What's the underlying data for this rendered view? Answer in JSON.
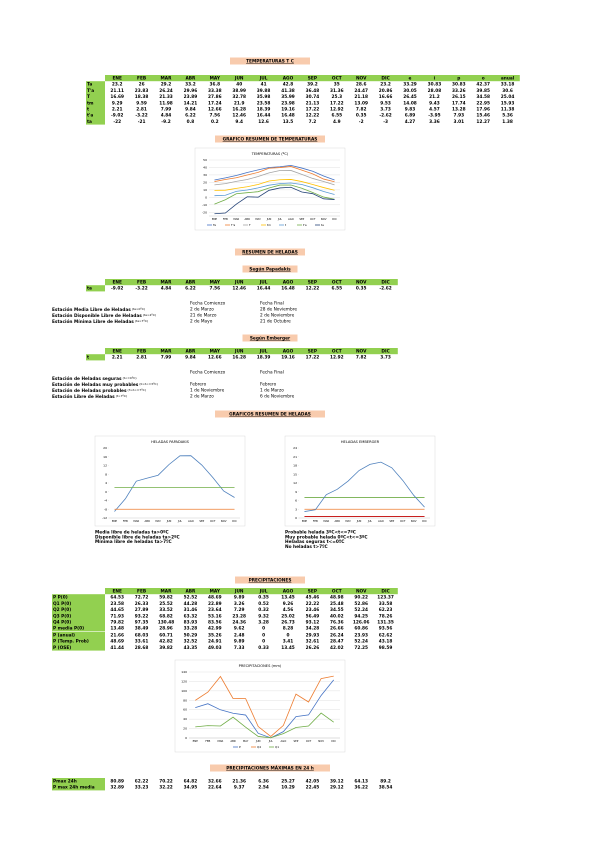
{
  "temperatures": {
    "heading": "TEMPERATURAS T C",
    "columns": [
      "ENE",
      "FEB",
      "MAR",
      "ABR",
      "MAY",
      "JUN",
      "JUL",
      "AGO",
      "SEP",
      "OCT",
      "NOV",
      "DIC",
      "e",
      "i",
      "p",
      "o",
      "anual"
    ],
    "rows": [
      {
        "label": "Ta",
        "values": [
          23.2,
          26,
          29.2,
          33.2,
          36.8,
          40,
          41,
          42.8,
          39.2,
          35,
          28.6,
          23.2,
          33.29,
          30.83,
          30.83,
          42.37,
          33.18
        ]
      },
      {
        "label": "T'a",
        "values": [
          21.11,
          23.83,
          26.24,
          29.96,
          33.38,
          38.99,
          39.88,
          41.38,
          36.48,
          31.36,
          24.47,
          20.86,
          30.05,
          28.08,
          33.26,
          39.85,
          30.6
        ]
      },
      {
        "label": "T",
        "values": [
          16.69,
          18.38,
          21.33,
          23.89,
          27.86,
          32.78,
          35.98,
          35.99,
          30.74,
          25.3,
          21.18,
          16.66,
          26.45,
          21.2,
          26.15,
          34.58,
          25.04
        ]
      },
      {
        "label": "tm",
        "values": [
          9.29,
          9.59,
          11.98,
          14.21,
          17.24,
          21.9,
          23.58,
          23.98,
          21.13,
          17.22,
          13.09,
          9.53,
          14.08,
          9.43,
          17.74,
          22.95,
          15.93
        ]
      },
      {
        "label": "t",
        "values": [
          2.21,
          2.81,
          7.99,
          9.84,
          12.66,
          16.28,
          18.39,
          19.16,
          17.22,
          12.92,
          7.82,
          3.73,
          9.83,
          4.57,
          13.28,
          17.96,
          11.38
        ]
      },
      {
        "label": "t'a",
        "values": [
          -9.02,
          -3.22,
          4.84,
          6.22,
          7.56,
          12.46,
          16.44,
          16.48,
          12.22,
          6.55,
          0.35,
          -2.62,
          6.89,
          -3.95,
          7.93,
          15.46,
          5.36
        ]
      },
      {
        "label": "ta",
        "values": [
          -22,
          -21,
          -9.2,
          0.8,
          0.2,
          9.4,
          12.6,
          13.5,
          7.2,
          4.9,
          -2,
          -3,
          4.27,
          3.36,
          3.01,
          12.27,
          1.38
        ]
      }
    ]
  },
  "temperature_chart": {
    "heading": "GRAFICO RESUMEN DE TEMPERATURAS",
    "type": "line",
    "title": "TEMPERATURAS (ºC)",
    "categories": [
      "ENE",
      "FEB",
      "MAR",
      "ABR",
      "MAY",
      "JUN",
      "JUL",
      "AGO",
      "SEP",
      "OCT",
      "NOV",
      "DIC"
    ],
    "ylim": [
      -25,
      50
    ],
    "yticks": [
      -20,
      -10,
      0,
      10,
      20,
      30,
      40,
      50
    ],
    "grid": true,
    "series": [
      {
        "name": "Ta",
        "color": "#4472c4",
        "values": [
          23.2,
          26,
          29.2,
          33.2,
          36.8,
          40,
          41,
          42.8,
          39.2,
          35,
          28.6,
          23.2
        ]
      },
      {
        "name": "T'a",
        "color": "#ed7d31",
        "values": [
          21.11,
          23.83,
          26.24,
          29.96,
          33.38,
          38.99,
          39.88,
          41.38,
          36.48,
          31.36,
          24.47,
          20.86
        ]
      },
      {
        "name": "T",
        "color": "#a5a5a5",
        "values": [
          16.69,
          18.38,
          21.33,
          23.89,
          27.86,
          32.78,
          35.98,
          35.99,
          30.74,
          25.3,
          21.18,
          16.66
        ]
      },
      {
        "name": "tm",
        "color": "#ffc000",
        "values": [
          9.29,
          9.59,
          11.98,
          14.21,
          17.24,
          21.9,
          23.58,
          23.98,
          21.13,
          17.22,
          13.09,
          9.53
        ]
      },
      {
        "name": "t",
        "color": "#5b9bd5",
        "values": [
          2.21,
          2.81,
          7.99,
          9.84,
          12.66,
          16.28,
          18.39,
          19.16,
          17.22,
          12.92,
          7.82,
          3.73
        ]
      },
      {
        "name": "t'a",
        "color": "#70ad47",
        "values": [
          -9.02,
          -3.22,
          4.84,
          6.22,
          7.56,
          12.46,
          16.44,
          16.48,
          12.22,
          6.55,
          0.35,
          -2.62
        ]
      },
      {
        "name": "ta",
        "color": "#264478",
        "values": [
          -22,
          -21,
          -9.2,
          0.8,
          0.2,
          9.4,
          12.6,
          13.5,
          7.2,
          4.9,
          -2,
          -3
        ]
      }
    ]
  },
  "frost": {
    "heading": "RESUMEN DE HELADAS",
    "papadakis": {
      "title": "Según Papadakis",
      "columns": [
        "ENE",
        "FEB",
        "MAR",
        "ABR",
        "MAY",
        "JUN",
        "JUL",
        "AGO",
        "SEP",
        "OCT",
        "NOV",
        "DIC"
      ],
      "rows": [
        {
          "label": "ta",
          "values": [
            -9.02,
            -3.22,
            4.84,
            6.22,
            7.56,
            12.46,
            16.44,
            16.48,
            12.22,
            6.55,
            0.35,
            -2.62
          ]
        }
      ],
      "date_headers": [
        "Fecha Comienzo",
        "Fecha Final"
      ],
      "periods": [
        {
          "label": "Estación Media Libre de Heladas",
          "note": "(ta>0ºC)",
          "start": "2 de Marzo",
          "end": "28 de Noviembre"
        },
        {
          "label": "Estación Disponible Libre de Heladas",
          "note": "(ta>2ºC)",
          "start": "21 de Marzo",
          "end": "2 de Noviembre"
        },
        {
          "label": "Estación Mínima Libre de Heladas",
          "note": "(ta>7ºC)",
          "start": "2 de Mayo",
          "end": "21 de Octubre"
        }
      ]
    },
    "emberger": {
      "title": "Según Emberger",
      "columns": [
        "ENE",
        "FEB",
        "MAR",
        "ABR",
        "MAY",
        "JUN",
        "JUL",
        "AGO",
        "SEP",
        "OCT",
        "NOV",
        "DIC"
      ],
      "rows": [
        {
          "label": "t",
          "values": [
            2.21,
            2.81,
            7.99,
            9.84,
            12.66,
            16.28,
            18.39,
            19.16,
            17.22,
            12.92,
            7.82,
            3.73
          ]
        }
      ],
      "date_headers": [
        "Fecha Comienzo",
        "Fecha Final"
      ],
      "periods": [
        {
          "label": "Estación de Heladas seguras",
          "note": "(t<=0ºC)",
          "start": "",
          "end": ""
        },
        {
          "label": "Estación de Heladas muy probables",
          "note": "(0<t<=3ºC)",
          "start": "Febrero",
          "end": "Febrero"
        },
        {
          "label": "Estación de Heladas probables",
          "note": "(3<t<=7ºC)",
          "start": "1 de Noviembre",
          "end": "1 de Marzo"
        },
        {
          "label": "Estación Libre de Heladas",
          "note": "(t>7ºC)",
          "start": "2 de Marzo",
          "end": "6 de Noviembre"
        }
      ]
    }
  },
  "frost_charts": {
    "heading": "GRAFICOS RESUMEN DE HELADAS",
    "charts": [
      {
        "type": "line",
        "title": "HELADAS PAPADAKIS",
        "categories": [
          "ENE",
          "FEB",
          "MAR",
          "ABR",
          "MAY",
          "JUN",
          "JUL",
          "AGO",
          "SEP",
          "OCT",
          "NOV",
          "DIC"
        ],
        "ylim": [
          -12,
          20
        ],
        "yticks": [
          -12,
          -8,
          -4,
          0,
          4,
          8,
          12,
          16,
          20
        ],
        "grid": false,
        "series": [
          {
            "name": "Media libre de heladas ta>0ºC",
            "color": "#4f81bd",
            "values": [
              -9.02,
              -3.22,
              4.84,
              6.22,
              7.56,
              12.46,
              16.44,
              16.48,
              12.22,
              6.55,
              0.35,
              -2.62
            ]
          },
          {
            "name": "Disponible libre de heladas ta>2ºC",
            "color": "#70ad47",
            "values": [
              2,
              2,
              2,
              2,
              2,
              2,
              2,
              2,
              2,
              2,
              2,
              2
            ]
          },
          {
            "name": "Mínima libre de heladas ta>7ºC",
            "color": "#ed7d31",
            "values": [
              -8,
              -8,
              -8,
              -8,
              -8,
              -8,
              -8,
              -8,
              -8,
              -8,
              -8,
              -8
            ]
          }
        ]
      },
      {
        "type": "line",
        "title": "HELADAS EMBERGER",
        "categories": [
          "ENE",
          "FEB",
          "MAR",
          "ABR",
          "MAY",
          "JUN",
          "JUL",
          "AGO",
          "SEP",
          "OCT",
          "NOV",
          "DIC"
        ],
        "ylim": [
          0,
          24
        ],
        "yticks": [
          0,
          3,
          6,
          9,
          12,
          15,
          18,
          21,
          24
        ],
        "grid": false,
        "series": [
          {
            "name": "Probable helada 3ºC<t<=7ºC",
            "color": "#ed7d31",
            "values": [
              3,
              3,
              3,
              3,
              3,
              3,
              3,
              3,
              3,
              3,
              3,
              3
            ]
          },
          {
            "name": "Muy probable helada 0ºC<t<=3ºC",
            "color": "#c00000",
            "values": [
              0.5,
              0.5,
              0.5,
              0.5,
              0.5,
              0.5,
              0.5,
              0.5,
              0.5,
              0.5,
              0.5,
              0.5
            ]
          },
          {
            "name": "Heladas seguras t<=0ºC",
            "color": "#70ad47",
            "values": [
              7,
              7,
              7,
              7,
              7,
              7,
              7,
              7,
              7,
              7,
              7,
              7
            ]
          },
          {
            "name": "No heladas t>7ºC",
            "color": "#4f81bd",
            "values": [
              2.21,
              2.81,
              7.99,
              9.84,
              12.66,
              16.28,
              18.39,
              19.16,
              17.22,
              12.92,
              7.82,
              3.73
            ]
          }
        ]
      }
    ]
  },
  "precipitation": {
    "heading": "PRECIPITACIONES",
    "columns": [
      "ENE",
      "FEB",
      "MAR",
      "ABR",
      "MAY",
      "JUN",
      "JUL",
      "AGO",
      "SEP",
      "OCT",
      "NOV",
      "DIC"
    ],
    "rows": [
      {
        "label": "P P(0)",
        "values": [
          64.53,
          72.72,
          59.82,
          52.52,
          48.69,
          9.89,
          0.35,
          13.45,
          45.46,
          48.98,
          90.22,
          123.37
        ]
      },
      {
        "label": "Q1 P(0)",
        "values": [
          23.58,
          26.33,
          25.52,
          44.28,
          22.89,
          3.26,
          0.52,
          9.26,
          22.22,
          25.48,
          52.86,
          33.58
        ]
      },
      {
        "label": "Q2 P(0)",
        "values": [
          44.65,
          27.89,
          33.52,
          31.46,
          23.64,
          7.29,
          0.32,
          4.56,
          23.46,
          34.55,
          52.24,
          62.23
        ]
      },
      {
        "label": "Q3 P(0)",
        "values": [
          71.93,
          93.22,
          68.82,
          63.32,
          53.16,
          23.28,
          9.32,
          25.02,
          56.49,
          40.02,
          94.25,
          78.26
        ]
      },
      {
        "label": "Q4 P(0)",
        "values": [
          79.82,
          97.35,
          130.48,
          83.93,
          83.56,
          24.36,
          3.28,
          26.73,
          93.12,
          76.36,
          126.06,
          131.35
        ]
      },
      {
        "label": "P media P(0)",
        "values": [
          13.48,
          38.49,
          28.96,
          33.28,
          42.99,
          9.62,
          0,
          8.28,
          34.28,
          26.66,
          60.86,
          93.56
        ]
      }
    ],
    "rows2": [
      {
        "label": "P (anual)",
        "values": [
          21.66,
          68.03,
          60.71,
          50.29,
          35.26,
          2.48,
          0,
          0,
          29.93,
          26.24,
          23.93,
          62.62
        ]
      },
      {
        "label": "P (Temp. Prob)",
        "values": [
          48.69,
          33.61,
          42.82,
          32.52,
          24.91,
          9.89,
          0,
          3.41,
          32.61,
          28.47,
          52.24,
          43.18
        ]
      },
      {
        "label": "P (OSE)",
        "values": [
          41.44,
          28.68,
          39.82,
          43.35,
          49.03,
          7.33,
          0.33,
          13.45,
          26.26,
          42.02,
          72.25,
          98.59
        ]
      }
    ]
  },
  "precipitation_chart": {
    "type": "line",
    "title": "PRECIPITACIONES (mm)",
    "categories": [
      "ENE",
      "FEB",
      "MAR",
      "ABR",
      "MAY",
      "JUN",
      "JUL",
      "AGO",
      "SEP",
      "OCT",
      "NOV",
      "DIC"
    ],
    "ylim": [
      0,
      140
    ],
    "yticks": [
      0,
      20,
      40,
      60,
      80,
      100,
      120,
      140
    ],
    "grid": true,
    "series": [
      {
        "name": "P",
        "color": "#4472c4",
        "values": [
          64.53,
          72.72,
          59.82,
          52.52,
          48.69,
          9.89,
          0.35,
          13.45,
          45.46,
          48.98,
          90.22,
          123.37
        ]
      },
      {
        "name": "Q4",
        "color": "#ed7d31",
        "values": [
          79.82,
          97.35,
          130.48,
          83.93,
          83.56,
          24.36,
          3.28,
          26.73,
          93.12,
          76.36,
          126.06,
          131.35
        ]
      },
      {
        "name": "Q1",
        "color": "#70ad47",
        "values": [
          23.58,
          26.33,
          25.52,
          44.28,
          22.89,
          3.26,
          0.52,
          9.26,
          22.22,
          25.48,
          52.86,
          33.58
        ]
      }
    ]
  },
  "max_precipitation": {
    "heading": "PRECIPITACIONES MÁXIMAS EN 24 h",
    "columns": [
      "ENE",
      "FEB",
      "MAR",
      "ABR",
      "MAY",
      "JUN",
      "JUL",
      "AGO",
      "SEP",
      "OCT",
      "NOV",
      "DIC"
    ],
    "rows": [
      {
        "label": "Pmax 24h",
        "values": [
          80.89,
          62.22,
          70.22,
          64.82,
          32.66,
          21.36,
          6.36,
          25.27,
          42.05,
          39.12,
          64.13,
          89.2
        ]
      },
      {
        "label": "P max 24h media",
        "values": [
          32.89,
          33.23,
          32.22,
          34.95,
          22.64,
          9.37,
          2.54,
          10.29,
          22.45,
          29.12,
          36.22,
          38.54
        ]
      }
    ]
  }
}
